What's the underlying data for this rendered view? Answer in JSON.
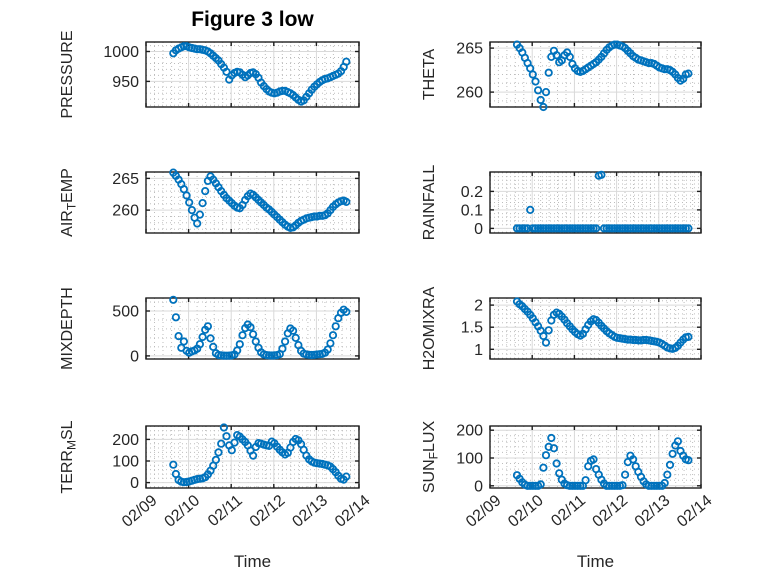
{
  "figure": {
    "bg_color": "#ffffff",
    "marker_color": "#0072bd",
    "axis_color": "#1f1f1f",
    "grid_color": "#d9d9d9",
    "minor_grid_color": "#bdbdbd",
    "text_color": "#262626"
  },
  "chart_data": {
    "type": "scatter",
    "marker": "open-circle",
    "title": "Figure 3 low",
    "xlabel": "Time",
    "grid": true,
    "minor_grid": true,
    "xlim": [
      9,
      14
    ],
    "x_minor_step": 0.2,
    "xticks": [
      {
        "v": 9,
        "label": "02/09"
      },
      {
        "v": 10,
        "label": "02/10"
      },
      {
        "v": 11,
        "label": "02/11"
      },
      {
        "v": 12,
        "label": "02/12"
      },
      {
        "v": 13,
        "label": "02/13"
      },
      {
        "v": 14,
        "label": "02/14"
      }
    ],
    "x": [
      9.64,
      9.7025,
      9.765,
      9.8275,
      9.89,
      9.9525,
      10.015,
      10.0775,
      10.14,
      10.2025,
      10.265,
      10.3275,
      10.39,
      10.4525,
      10.515,
      10.5775,
      10.64,
      10.7025,
      10.765,
      10.8275,
      10.89,
      10.9525,
      11.015,
      11.0775,
      11.14,
      11.2025,
      11.265,
      11.3275,
      11.39,
      11.4525,
      11.515,
      11.5775,
      11.64,
      11.7025,
      11.765,
      11.8275,
      11.89,
      11.9525,
      12.015,
      12.0775,
      12.14,
      12.2025,
      12.265,
      12.3275,
      12.39,
      12.4525,
      12.515,
      12.5775,
      12.64,
      12.7025,
      12.765,
      12.8275,
      12.89,
      12.9525,
      13.015,
      13.0775,
      13.14,
      13.2025,
      13.265,
      13.3275,
      13.39,
      13.4525,
      13.515,
      13.5775,
      13.64,
      13.7025
    ],
    "plots": [
      {
        "name": "PRESSURE",
        "row": 0,
        "col": 0,
        "label_parts": [
          {
            "text": "PRESSURE",
            "sub": false
          }
        ],
        "ylim": [
          907,
          1016
        ],
        "y_minor_step": 10,
        "yticks": [
          {
            "v": 950,
            "label": "950"
          },
          {
            "v": 1000,
            "label": "1000"
          }
        ],
        "y": [
          997,
          1002,
          1005,
          1007,
          1009,
          1009,
          1007,
          1006,
          1005,
          1004,
          1004,
          1003,
          1002,
          1000,
          997,
          993,
          989,
          985,
          979,
          973,
          966,
          953,
          960,
          964,
          966,
          965,
          961,
          957,
          960,
          964,
          965,
          962,
          956,
          948,
          942,
          937,
          933,
          931,
          930,
          931,
          933,
          934,
          934,
          932,
          930,
          927,
          923,
          919,
          916,
          918,
          924,
          930,
          936,
          941,
          945,
          949,
          952,
          954,
          955,
          957,
          959,
          961,
          963,
          967,
          974,
          983
        ]
      },
      {
        "name": "THETA",
        "row": 0,
        "col": 1,
        "label_parts": [
          {
            "text": "THETA",
            "sub": false
          }
        ],
        "ylim": [
          258.3,
          265.7
        ],
        "y_minor_step": 1,
        "yticks": [
          {
            "v": 260,
            "label": "260"
          },
          {
            "v": 265,
            "label": "265"
          }
        ],
        "y": [
          265.4,
          265.0,
          264.5,
          263.9,
          263.3,
          262.7,
          262.0,
          261.2,
          260.2,
          259.1,
          258.3,
          260.0,
          262.2,
          264.0,
          264.7,
          264.2,
          263.4,
          263.6,
          264.2,
          264.5,
          264.0,
          263.2,
          262.7,
          262.4,
          262.3,
          262.4,
          262.6,
          262.8,
          263.0,
          263.2,
          263.4,
          263.7,
          264.0,
          264.4,
          264.8,
          265.1,
          265.3,
          265.4,
          265.4,
          265.3,
          265.2,
          265.0,
          264.7,
          264.4,
          264.1,
          263.9,
          263.7,
          263.6,
          263.5,
          263.4,
          263.3,
          263.3,
          263.2,
          263.0,
          262.8,
          262.7,
          262.6,
          262.6,
          262.5,
          262.3,
          262.0,
          261.6,
          261.3,
          261.5,
          262.0,
          262.1
        ]
      },
      {
        "name": "AIR_TEMP",
        "row": 1,
        "col": 0,
        "label_parts": [
          {
            "text": "AIR",
            "sub": false
          },
          {
            "text": "T",
            "sub": true
          },
          {
            "text": "EMP",
            "sub": false
          }
        ],
        "ylim": [
          256.4,
          266.0
        ],
        "y_minor_step": 1,
        "yticks": [
          {
            "v": 260,
            "label": "260"
          },
          {
            "v": 265,
            "label": "265"
          }
        ],
        "y": [
          265.9,
          265.4,
          264.8,
          264.1,
          263.3,
          262.3,
          261.2,
          260.0,
          258.8,
          257.9,
          259.3,
          261.1,
          263.0,
          264.6,
          265.3,
          264.8,
          264.2,
          263.6,
          263.0,
          262.4,
          261.9,
          261.5,
          261.1,
          260.7,
          260.4,
          260.3,
          260.8,
          261.6,
          262.2,
          262.6,
          262.4,
          262.0,
          261.6,
          261.2,
          260.8,
          260.4,
          260.1,
          259.7,
          259.3,
          258.9,
          258.5,
          258.1,
          257.7,
          257.4,
          257.2,
          257.3,
          257.6,
          258.0,
          258.3,
          258.5,
          258.7,
          258.8,
          258.9,
          259.0,
          259.0,
          259.1,
          259.1,
          259.2,
          259.5,
          260.0,
          260.5,
          260.9,
          261.2,
          261.4,
          261.5,
          261.3
        ]
      },
      {
        "name": "RAINFALL",
        "row": 1,
        "col": 1,
        "label_parts": [
          {
            "text": "RAINFALL",
            "sub": false
          }
        ],
        "ylim": [
          -0.025,
          0.305
        ],
        "y_minor_step": 0.02,
        "yticks": [
          {
            "v": 0,
            "label": "0"
          },
          {
            "v": 0.1,
            "label": "0.1"
          },
          {
            "v": 0.2,
            "label": "0.2"
          }
        ],
        "y": [
          0,
          0,
          0,
          0,
          0,
          0.1,
          0,
          0,
          0,
          0,
          0,
          0,
          0,
          0,
          0,
          0,
          0,
          0,
          0,
          0,
          0,
          0,
          0,
          0,
          0,
          0,
          0,
          0,
          0,
          0,
          0,
          0.285,
          0.29,
          0,
          0,
          0,
          0,
          0,
          0,
          0,
          0,
          0,
          0,
          0,
          0,
          0,
          0,
          0,
          0,
          0,
          0,
          0,
          0,
          0,
          0,
          0,
          0,
          0,
          0,
          0,
          0,
          0,
          0,
          0,
          0,
          0
        ]
      },
      {
        "name": "MIXDEPTH",
        "row": 2,
        "col": 0,
        "label_parts": [
          {
            "text": "MIXDEPTH",
            "sub": false
          }
        ],
        "ylim": [
          -35,
          645
        ],
        "y_minor_step": 100,
        "yticks": [
          {
            "v": 0,
            "label": "0"
          },
          {
            "v": 500,
            "label": "500"
          }
        ],
        "y": [
          625,
          430,
          220,
          90,
          160,
          55,
          35,
          50,
          60,
          80,
          130,
          210,
          290,
          330,
          195,
          100,
          30,
          10,
          5,
          3,
          2,
          3,
          5,
          15,
          60,
          130,
          230,
          310,
          350,
          320,
          240,
          160,
          90,
          40,
          15,
          8,
          5,
          4,
          5,
          8,
          20,
          80,
          160,
          250,
          305,
          280,
          200,
          120,
          55,
          25,
          15,
          12,
          10,
          12,
          15,
          18,
          22,
          35,
          70,
          140,
          230,
          330,
          420,
          480,
          515,
          490
        ]
      },
      {
        "name": "H2OMIXRA",
        "row": 2,
        "col": 1,
        "label_parts": [
          {
            "text": "H2OMIXRA",
            "sub": false
          }
        ],
        "ylim": [
          0.78,
          2.16
        ],
        "y_minor_step": 0.1,
        "yticks": [
          {
            "v": 1,
            "label": "1"
          },
          {
            "v": 1.5,
            "label": "1.5"
          },
          {
            "v": 2,
            "label": "2"
          }
        ],
        "y": [
          2.08,
          2.02,
          1.97,
          1.91,
          1.85,
          1.78,
          1.7,
          1.61,
          1.52,
          1.42,
          1.3,
          1.15,
          1.43,
          1.65,
          1.78,
          1.83,
          1.8,
          1.74,
          1.67,
          1.59,
          1.52,
          1.45,
          1.39,
          1.34,
          1.31,
          1.35,
          1.45,
          1.55,
          1.63,
          1.68,
          1.66,
          1.6,
          1.53,
          1.47,
          1.41,
          1.36,
          1.32,
          1.28,
          1.26,
          1.25,
          1.24,
          1.23,
          1.22,
          1.22,
          1.21,
          1.21,
          1.2,
          1.2,
          1.21,
          1.21,
          1.2,
          1.19,
          1.18,
          1.17,
          1.15,
          1.12,
          1.08,
          1.04,
          1.02,
          1.01,
          1.03,
          1.08,
          1.15,
          1.22,
          1.27,
          1.28
        ]
      },
      {
        "name": "TERR_MSL",
        "row": 3,
        "col": 0,
        "label_parts": [
          {
            "text": "TERR",
            "sub": false
          },
          {
            "text": "M",
            "sub": true
          },
          {
            "text": "SL",
            "sub": false
          }
        ],
        "ylim": [
          -25,
          262
        ],
        "y_minor_step": 20,
        "yticks": [
          {
            "v": 0,
            "label": "0"
          },
          {
            "v": 100,
            "label": "100"
          },
          {
            "v": 200,
            "label": "200"
          }
        ],
        "y": [
          83,
          40,
          12,
          4,
          2,
          3,
          5,
          9,
          13,
          16,
          18,
          20,
          25,
          38,
          55,
          78,
          105,
          140,
          180,
          255,
          215,
          172,
          150,
          185,
          220,
          213,
          200,
          188,
          172,
          148,
          125,
          165,
          183,
          180,
          176,
          172,
          170,
          190,
          182,
          166,
          152,
          140,
          130,
          138,
          162,
          188,
          202,
          196,
          178,
          152,
          125,
          108,
          98,
          92,
          90,
          88,
          86,
          83,
          80,
          74,
          62,
          48,
          32,
          18,
          14,
          28
        ]
      },
      {
        "name": "SUN_FLUX",
        "row": 3,
        "col": 1,
        "label_parts": [
          {
            "text": "SUN",
            "sub": false
          },
          {
            "text": "F",
            "sub": true
          },
          {
            "text": "LUX",
            "sub": false
          }
        ],
        "ylim": [
          -8,
          215
        ],
        "y_minor_step": 20,
        "yticks": [
          {
            "v": 0,
            "label": "0"
          },
          {
            "v": 100,
            "label": "100"
          },
          {
            "v": 200,
            "label": "200"
          }
        ],
        "y": [
          38,
          25,
          12,
          4,
          0,
          0,
          0,
          0,
          0,
          5,
          65,
          110,
          140,
          172,
          135,
          80,
          45,
          22,
          8,
          2,
          0,
          0,
          0,
          0,
          0,
          0,
          20,
          70,
          90,
          95,
          60,
          40,
          22,
          8,
          0,
          0,
          0,
          0,
          0,
          0,
          2,
          40,
          85,
          108,
          95,
          70,
          50,
          32,
          16,
          5,
          0,
          0,
          0,
          0,
          0,
          0,
          10,
          40,
          75,
          115,
          145,
          160,
          125,
          108,
          95,
          92
        ]
      }
    ]
  }
}
